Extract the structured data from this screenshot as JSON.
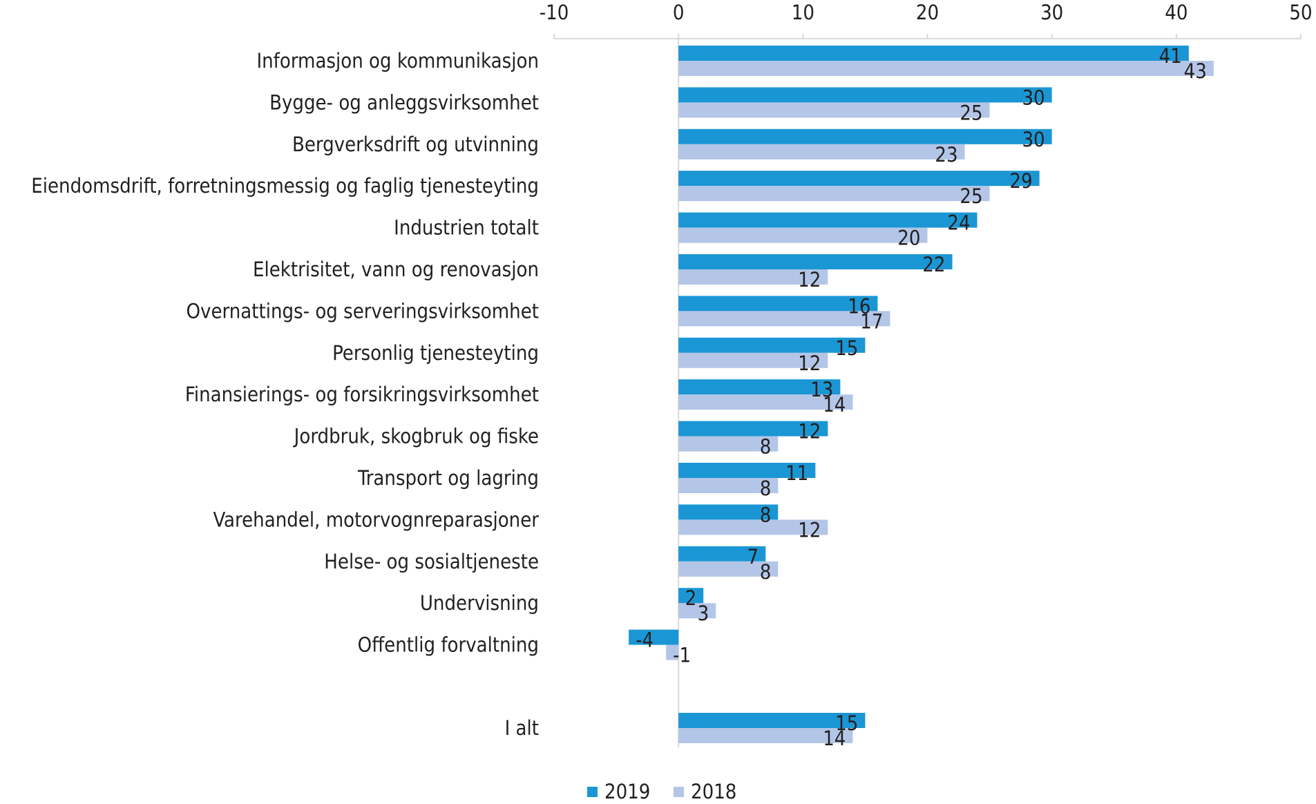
{
  "chart_data": {
    "type": "bar",
    "orientation": "horizontal",
    "title": "",
    "xlabel": "",
    "ylabel": "",
    "xlim": [
      -10,
      50
    ],
    "xticks": [
      "-10",
      "0",
      "10",
      "20",
      "30",
      "40",
      "50"
    ],
    "categories": [
      "Informasjon og kommunikasjon",
      "Bygge- og anleggsvirksomhet",
      "Bergverksdrift og utvinning",
      "Eiendomsdrift, forretningsmessig og faglig tjenesteyting",
      "Industrien totalt",
      "Elektrisitet, vann og renovasjon",
      "Overnattings- og serveringsvirksomhet",
      "Personlig tjenesteyting",
      "Finansierings- og forsikringsvirksomhet",
      "Jordbruk, skogbruk og fiske",
      "Transport og lagring",
      "Varehandel, motorvognreparasjoner",
      "Helse- og sosialtjeneste",
      "Undervisning",
      "Offentlig forvaltning",
      "I alt"
    ],
    "series": [
      {
        "name": "2019",
        "color": "#1b96d4",
        "values": [
          41,
          30,
          30,
          29,
          24,
          22,
          16,
          15,
          13,
          12,
          11,
          8,
          7,
          2,
          -4,
          15
        ]
      },
      {
        "name": "2018",
        "color": "#b3c6e7",
        "values": [
          43,
          25,
          23,
          25,
          20,
          12,
          17,
          12,
          14,
          8,
          8,
          12,
          8,
          3,
          -1,
          14
        ]
      }
    ],
    "grid": false,
    "legend_position": "bottom"
  }
}
